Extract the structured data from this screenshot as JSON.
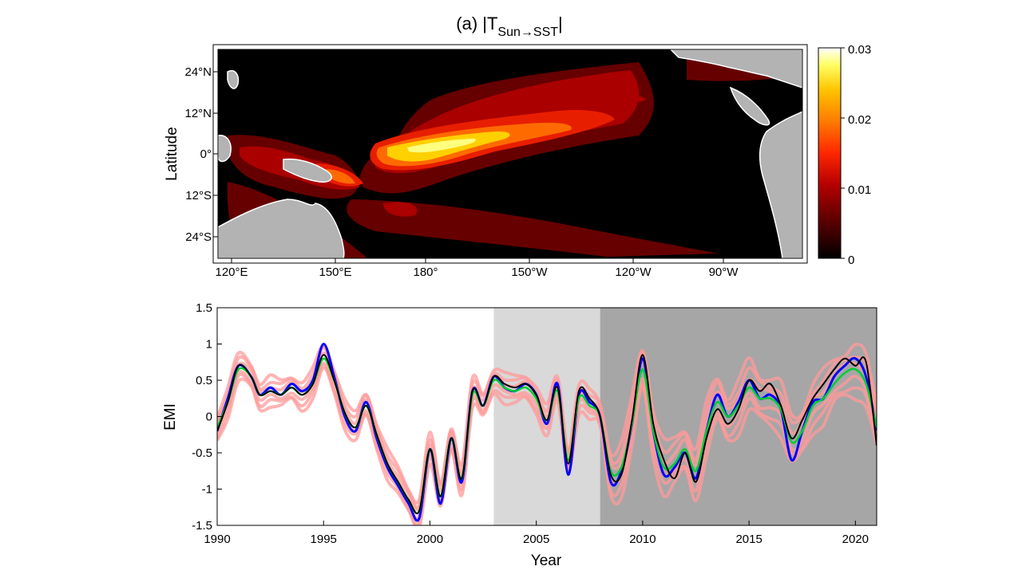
{
  "chart_data": [
    {
      "type": "heatmap",
      "title": "(a) |T",
      "title_subscript": "Sun→SST",
      "title_end": "|",
      "ylabel": "Latitude",
      "x_ticks": [
        "120°E",
        "150°E",
        "180°",
        "150°W",
        "120°W",
        "90°W"
      ],
      "y_ticks": [
        "24°N",
        "12°N",
        "0°",
        "12°S",
        "24°S"
      ],
      "colorbar": {
        "ticks": [
          "0",
          "0.01",
          "0.02",
          "0.03"
        ],
        "range": [
          0,
          0.03
        ],
        "colormap": [
          "#000000",
          "#5c0000",
          "#b50000",
          "#ff2600",
          "#ff7a00",
          "#ffc400",
          "#ffff66",
          "#ffffff"
        ]
      },
      "land_color": "#b3b3b3",
      "ocean_base_color": "#000000"
    },
    {
      "type": "line",
      "xlabel": "Year",
      "ylabel": "EMI",
      "xlim": [
        1990,
        2021
      ],
      "ylim": [
        -1.5,
        1.5
      ],
      "x_ticks": [
        "1990",
        "1995",
        "2000",
        "2005",
        "2010",
        "2015",
        "2020"
      ],
      "y_ticks": [
        "1.5",
        "1",
        "0.5",
        "0",
        "-0.5",
        "-1",
        "-1.5"
      ],
      "shaded_periods": [
        {
          "from": 2003,
          "to": 2008,
          "color": "#d9d9d9"
        },
        {
          "from": 2008,
          "to": 2021,
          "color": "#a6a6a6"
        }
      ],
      "series": [
        {
          "color": "#0000ff",
          "x": [
            1990,
            1990.5,
            1991,
            1991.6,
            1992,
            1992.5,
            1993,
            1993.5,
            1994,
            1994.5,
            1995,
            1995.5,
            1996,
            1996.5,
            1997,
            1997.5,
            1998,
            1998.5,
            1999,
            1999.5,
            2000,
            2000.5,
            2001,
            2001.5,
            2002,
            2002.5,
            2003,
            2003.5,
            2004,
            2004.5,
            2005,
            2005.5,
            2006,
            2006.5,
            2007,
            2007.5,
            2008,
            2008.5,
            2009,
            2009.5,
            2010,
            2010.5,
            2011,
            2011.5,
            2012,
            2012.5,
            2013,
            2013.5,
            2014,
            2014.5,
            2015,
            2015.5,
            2016,
            2016.5,
            2017,
            2017.5,
            2018,
            2018.5,
            2019,
            2019.5,
            2020,
            2020.5,
            2021
          ],
          "y": [
            -0.2,
            0.25,
            0.7,
            0.55,
            0.3,
            0.4,
            0.3,
            0.45,
            0.35,
            0.5,
            1.0,
            0.55,
            0.0,
            -0.2,
            0.2,
            -0.3,
            -0.7,
            -0.95,
            -1.2,
            -1.4,
            -0.45,
            -1.2,
            -0.3,
            -0.9,
            0.35,
            0.15,
            0.55,
            0.4,
            0.35,
            0.45,
            0.3,
            -0.1,
            0.45,
            -0.8,
            0.3,
            0.2,
            0.0,
            -0.9,
            -0.75,
            -0.1,
            0.8,
            -0.2,
            -0.8,
            -0.7,
            -0.5,
            -0.85,
            -0.2,
            0.3,
            0.0,
            0.2,
            0.5,
            0.25,
            0.3,
            0.1,
            -0.6,
            -0.2,
            0.2,
            0.25,
            0.55,
            0.7,
            0.8,
            0.55,
            -0.2
          ]
        },
        {
          "color": "#00cc33",
          "x": [
            1990,
            1990.5,
            1991,
            1991.6,
            1992,
            1992.5,
            1993,
            1993.5,
            1994,
            1994.5,
            1995,
            1995.5,
            1996,
            1996.5,
            1997,
            1997.5,
            1998,
            1998.5,
            1999,
            1999.5,
            2000,
            2000.5,
            2001,
            2001.5,
            2002,
            2002.5,
            2003,
            2003.5,
            2004,
            2004.5,
            2005,
            2005.5,
            2006,
            2006.5,
            2007,
            2007.5,
            2008,
            2008.5,
            2009,
            2009.5,
            2010,
            2010.5,
            2011,
            2011.5,
            2012,
            2012.5,
            2013,
            2013.5,
            2014,
            2014.5,
            2015,
            2015.5,
            2016,
            2016.5,
            2017,
            2017.5,
            2018,
            2018.5,
            2019,
            2019.5,
            2020,
            2020.5,
            2021
          ],
          "y": [
            -0.15,
            0.2,
            0.65,
            0.55,
            0.3,
            0.35,
            0.3,
            0.4,
            0.3,
            0.45,
            0.8,
            0.5,
            0.05,
            -0.15,
            0.15,
            -0.25,
            -0.65,
            -0.9,
            -1.15,
            -1.3,
            -0.45,
            -1.1,
            -0.3,
            -0.85,
            0.3,
            0.15,
            0.5,
            0.4,
            0.35,
            0.4,
            0.25,
            -0.05,
            0.35,
            -0.6,
            0.25,
            0.15,
            0.0,
            -0.75,
            -0.7,
            -0.1,
            0.65,
            -0.2,
            -0.7,
            -0.65,
            -0.45,
            -0.75,
            -0.2,
            0.2,
            0.0,
            0.15,
            0.4,
            0.25,
            0.25,
            0.1,
            -0.35,
            -0.2,
            0.15,
            0.25,
            0.45,
            0.6,
            0.65,
            0.45,
            -0.15
          ]
        },
        {
          "color": "#000000",
          "x": [
            1990,
            1990.5,
            1991,
            1991.6,
            1992,
            1992.5,
            1993,
            1993.5,
            1994,
            1994.5,
            1995,
            1995.5,
            1996,
            1996.5,
            1997,
            1997.5,
            1998,
            1998.5,
            1999,
            1999.5,
            2000,
            2000.5,
            2001,
            2001.5,
            2002,
            2002.5,
            2003,
            2003.5,
            2004,
            2004.5,
            2005,
            2005.5,
            2006,
            2006.5,
            2007,
            2007.5,
            2008,
            2008.5,
            2009,
            2009.5,
            2010,
            2010.5,
            2011,
            2011.5,
            2012,
            2012.5,
            2013,
            2013.5,
            2014,
            2014.5,
            2015,
            2015.5,
            2016,
            2016.5,
            2017,
            2017.5,
            2018,
            2018.5,
            2019,
            2019.5,
            2020,
            2020.5,
            2021
          ],
          "y": [
            -0.2,
            0.2,
            0.7,
            0.55,
            0.3,
            0.35,
            0.3,
            0.4,
            0.3,
            0.45,
            0.85,
            0.5,
            0.05,
            -0.15,
            0.15,
            -0.25,
            -0.65,
            -0.9,
            -1.15,
            -1.3,
            -0.45,
            -1.1,
            -0.3,
            -0.85,
            0.35,
            0.15,
            0.55,
            0.45,
            0.4,
            0.45,
            0.3,
            -0.05,
            0.4,
            -0.65,
            0.35,
            0.25,
            0.0,
            -0.8,
            -0.8,
            -0.05,
            0.85,
            -0.1,
            -0.6,
            -0.85,
            -0.5,
            -0.9,
            -0.3,
            0.1,
            -0.1,
            0.1,
            0.5,
            0.35,
            0.45,
            0.15,
            -0.3,
            -0.05,
            0.25,
            0.45,
            0.65,
            0.8,
            0.7,
            0.75,
            -0.4
          ]
        }
      ]
    }
  ]
}
